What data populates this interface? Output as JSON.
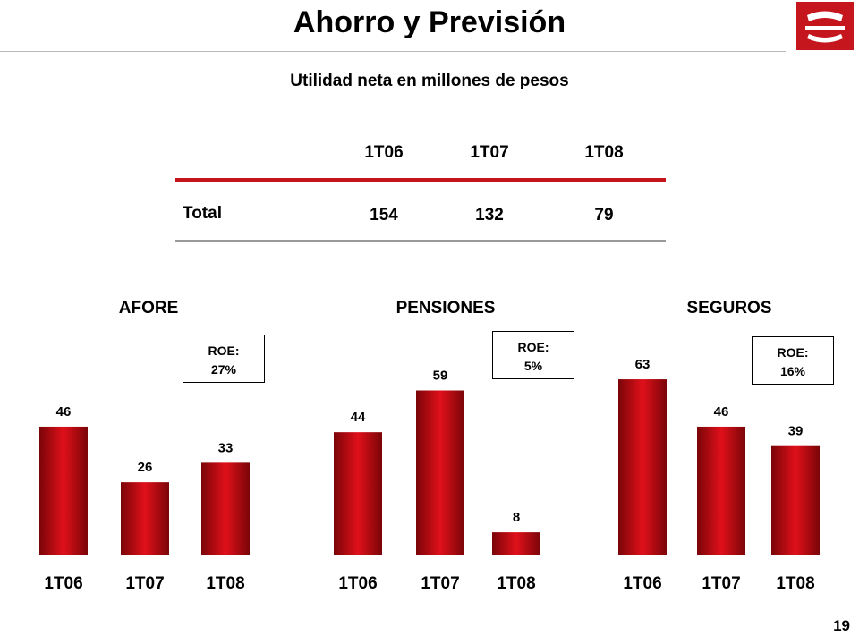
{
  "header": {
    "title": "Ahorro y Previsión",
    "subtitle": "Utilidad neta en millones de pesos"
  },
  "table": {
    "columns": [
      "1T06",
      "1T07",
      "1T08"
    ],
    "row_label": "Total",
    "values": [
      "154",
      "132",
      "79"
    ]
  },
  "colors": {
    "accent": "#c5161d",
    "bar_dark": "#7a0508",
    "bar_light": "#e0101a"
  },
  "page_number": "19",
  "chart_data": [
    {
      "type": "bar",
      "title": "AFORE",
      "categories": [
        "1T06",
        "1T07",
        "1T08"
      ],
      "values": [
        46,
        26,
        33
      ],
      "roe_label": "ROE:",
      "roe_value": "27%"
    },
    {
      "type": "bar",
      "title": "PENSIONES",
      "categories": [
        "1T06",
        "1T07",
        "1T08"
      ],
      "values": [
        44,
        59,
        8
      ],
      "roe_label": "ROE:",
      "roe_value": "5%"
    },
    {
      "type": "bar",
      "title": "SEGUROS",
      "categories": [
        "1T06",
        "1T07",
        "1T08"
      ],
      "values": [
        63,
        46,
        39
      ],
      "roe_label": "ROE:",
      "roe_value": "16%"
    }
  ]
}
